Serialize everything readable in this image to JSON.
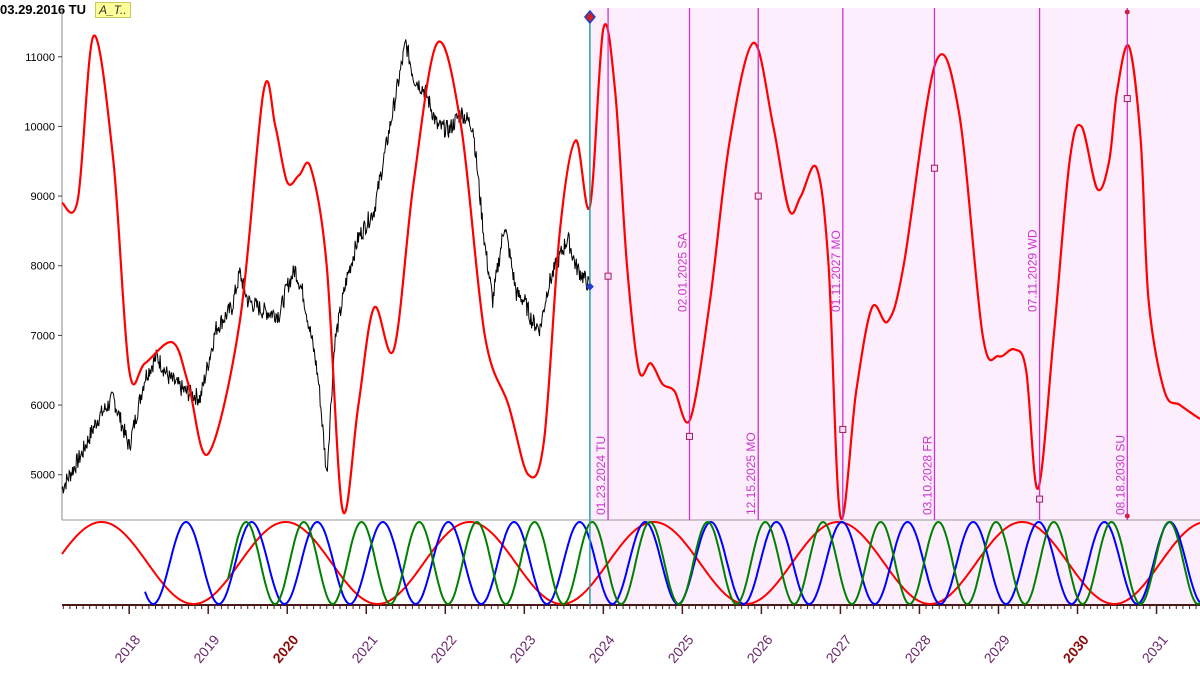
{
  "header": {
    "date": "03.29.2016 TU",
    "tag": "A_T.."
  },
  "colors": {
    "price": "#000000",
    "forecast": "#ff0000",
    "cycle_long": "#ff0000",
    "cycle_mid": "#0000ff",
    "cycle_short": "#008000",
    "marker": "#cc33cc",
    "forecast_zone": "#fdeefd",
    "now_line": "#2aa0a0"
  },
  "chart_data": {
    "type": "line",
    "title": "",
    "xlabel": "",
    "ylabel": "",
    "x_range": [
      2017.15,
      2031.55
    ],
    "ylim": [
      4350,
      11700
    ],
    "y_ticks": [
      5000,
      6000,
      7000,
      8000,
      9000,
      10000,
      11000
    ],
    "x_tick_labels": [
      {
        "label": "2018",
        "year": 2018,
        "bold": false
      },
      {
        "label": "2019",
        "year": 2019,
        "bold": false
      },
      {
        "label": "2020",
        "year": 2020,
        "bold": true
      },
      {
        "label": "2021",
        "year": 2021,
        "bold": false
      },
      {
        "label": "2022",
        "year": 2022,
        "bold": false
      },
      {
        "label": "2023",
        "year": 2023,
        "bold": false
      },
      {
        "label": "2024",
        "year": 2024,
        "bold": false
      },
      {
        "label": "2025",
        "year": 2025,
        "bold": false
      },
      {
        "label": "2026",
        "year": 2026,
        "bold": false
      },
      {
        "label": "2027",
        "year": 2027,
        "bold": false
      },
      {
        "label": "2028",
        "year": 2028,
        "bold": false
      },
      {
        "label": "2029",
        "year": 2029,
        "bold": false
      },
      {
        "label": "2030",
        "year": 2030,
        "bold": true
      },
      {
        "label": "2031",
        "year": 2031,
        "bold": false
      }
    ],
    "now_year": 2023.83,
    "series": [
      {
        "name": "price",
        "x": [
          2017.15,
          2017.4,
          2017.6,
          2017.8,
          2018.0,
          2018.2,
          2018.35,
          2018.5,
          2018.7,
          2018.9,
          2019.1,
          2019.3,
          2019.4,
          2019.5,
          2019.7,
          2019.9,
          2020.0,
          2020.1,
          2020.2,
          2020.25,
          2020.35,
          2020.4,
          2020.5,
          2020.6,
          2020.75,
          2020.9,
          2021.1,
          2021.3,
          2021.5,
          2021.6,
          2021.75,
          2021.9,
          2022.05,
          2022.2,
          2022.35,
          2022.5,
          2022.6,
          2022.75,
          2022.9,
          2023.0,
          2023.1,
          2023.2,
          2023.3,
          2023.4,
          2023.55,
          2023.65,
          2023.83
        ],
        "y": [
          4800,
          5300,
          5800,
          6100,
          5400,
          6400,
          6700,
          6400,
          6200,
          6100,
          7100,
          7400,
          7900,
          7500,
          7350,
          7300,
          7700,
          7950,
          7600,
          7300,
          6700,
          6300,
          5000,
          6900,
          7800,
          8400,
          8800,
          10000,
          11200,
          10700,
          10500,
          10000,
          9950,
          10200,
          10000,
          8300,
          7500,
          8600,
          7600,
          7500,
          7200,
          7100,
          7700,
          8000,
          8400,
          8000,
          7700
        ]
      },
      {
        "name": "forecast",
        "x": [
          2017.15,
          2017.35,
          2017.55,
          2017.8,
          2018.0,
          2018.2,
          2018.55,
          2018.75,
          2019.0,
          2019.4,
          2019.7,
          2019.85,
          2020.0,
          2020.15,
          2020.3,
          2020.5,
          2020.7,
          2020.9,
          2021.1,
          2021.35,
          2021.6,
          2021.9,
          2022.2,
          2022.5,
          2022.8,
          2023.05,
          2023.25,
          2023.45,
          2023.65,
          2023.83,
          2024.0,
          2024.15,
          2024.3,
          2024.45,
          2024.6,
          2024.75,
          2024.9,
          2025.1,
          2025.35,
          2025.6,
          2025.9,
          2026.15,
          2026.35,
          2026.5,
          2026.7,
          2026.85,
          2027.0,
          2027.2,
          2027.4,
          2027.6,
          2027.8,
          2028.2,
          2028.5,
          2028.8,
          2029.0,
          2029.2,
          2029.35,
          2029.5,
          2029.7,
          2029.9,
          2030.05,
          2030.25,
          2030.4,
          2030.5,
          2030.65,
          2030.8,
          2030.9,
          2031.1,
          2031.3,
          2031.55
        ],
        "y": [
          8900,
          8950,
          11300,
          9500,
          6500,
          6600,
          6900,
          6300,
          5300,
          7200,
          10500,
          10000,
          9200,
          9300,
          9400,
          8000,
          4500,
          6000,
          7400,
          6800,
          9200,
          11200,
          10000,
          7000,
          6000,
          5000,
          5500,
          8500,
          9800,
          8850,
          11400,
          10500,
          8000,
          6500,
          6600,
          6300,
          6200,
          5800,
          7500,
          9800,
          11200,
          10000,
          8800,
          9000,
          9400,
          8000,
          4400,
          6200,
          7400,
          7200,
          8000,
          10900,
          10200,
          7000,
          6700,
          6800,
          6500,
          4800,
          7000,
          9500,
          10000,
          9100,
          9500,
          10500,
          11150,
          9800,
          7500,
          6200,
          6000,
          5800
        ]
      }
    ],
    "turning_points": [
      {
        "date": "01.23.2024 TU",
        "year": 2024.06,
        "value": 7850
      },
      {
        "date": "02.01.2025 SA",
        "year": 2025.09,
        "value": 5550
      },
      {
        "date": "12.15.2025 MO",
        "year": 2025.96,
        "value": 9000
      },
      {
        "date": "01.11.2027 MO",
        "year": 2027.03,
        "value": 5650
      },
      {
        "date": "03.10.2028 FR",
        "year": 2028.19,
        "value": 9400
      },
      {
        "date": "07.11.2029 WD",
        "year": 2029.52,
        "value": 4650
      },
      {
        "date": "08.18.2030 SU",
        "year": 2030.63,
        "value": 10400
      }
    ],
    "cycles": [
      {
        "name": "long-cycle",
        "period_years": 2.33,
        "phase_year": 2017.65,
        "start": 2017.15
      },
      {
        "name": "mid-cycle",
        "period_years": 0.83,
        "phase_year": 2018.72,
        "start": 2018.2
      },
      {
        "name": "short-cycle",
        "period_years": 0.73,
        "phase_year": 2019.48,
        "start": 2019.25
      }
    ]
  }
}
